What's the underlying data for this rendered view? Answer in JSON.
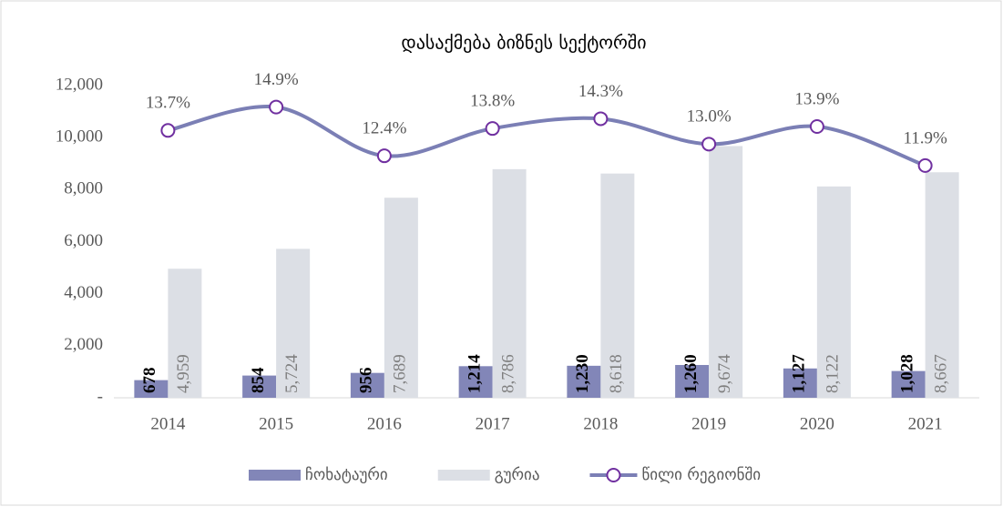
{
  "chart_data": {
    "type": "bar+line",
    "title": "დასაქმება ბიზნეს სექტორში",
    "categories": [
      "2014",
      "2015",
      "2016",
      "2017",
      "2018",
      "2019",
      "2020",
      "2021"
    ],
    "series": [
      {
        "name": "ჩოხატაური",
        "type": "bar",
        "color": "#8286b8",
        "values": [
          678,
          854,
          956,
          1214,
          1230,
          1260,
          1127,
          1028
        ],
        "value_labels": [
          "678",
          "854",
          "956",
          "1,214",
          "1,230",
          "1,260",
          "1,127",
          "1,028"
        ]
      },
      {
        "name": "გურია",
        "type": "bar",
        "color": "#dcdfe5",
        "values": [
          4959,
          5724,
          7689,
          8786,
          8618,
          9674,
          8122,
          8667
        ],
        "value_labels": [
          "4,959",
          "5,724",
          "7,689",
          "8,786",
          "8,618",
          "9,674",
          "8,122",
          "8,667"
        ]
      },
      {
        "name": "წილი რეგიონში",
        "type": "line",
        "axis": "y2",
        "color": "#7b7fb5",
        "marker_edge_color": "#7030a0",
        "values": [
          13.7,
          14.9,
          12.4,
          13.8,
          14.3,
          13.0,
          13.9,
          11.9
        ],
        "value_labels": [
          "13.7%",
          "14.9%",
          "12.4%",
          "13.8%",
          "14.3%",
          "13.0%",
          "13.9%",
          "11.9%"
        ]
      }
    ],
    "ylim": [
      0,
      12000
    ],
    "yticks": [
      {
        "value": 0,
        "label": "-"
      },
      {
        "value": 2000,
        "label": "2,000"
      },
      {
        "value": 4000,
        "label": "4,000"
      },
      {
        "value": 6000,
        "label": "6,000"
      },
      {
        "value": 8000,
        "label": "8,000"
      },
      {
        "value": 10000,
        "label": "10,000"
      },
      {
        "value": 12000,
        "label": "12,000"
      }
    ],
    "y2lim": [
      0,
      16
    ],
    "legend": "bottom"
  }
}
